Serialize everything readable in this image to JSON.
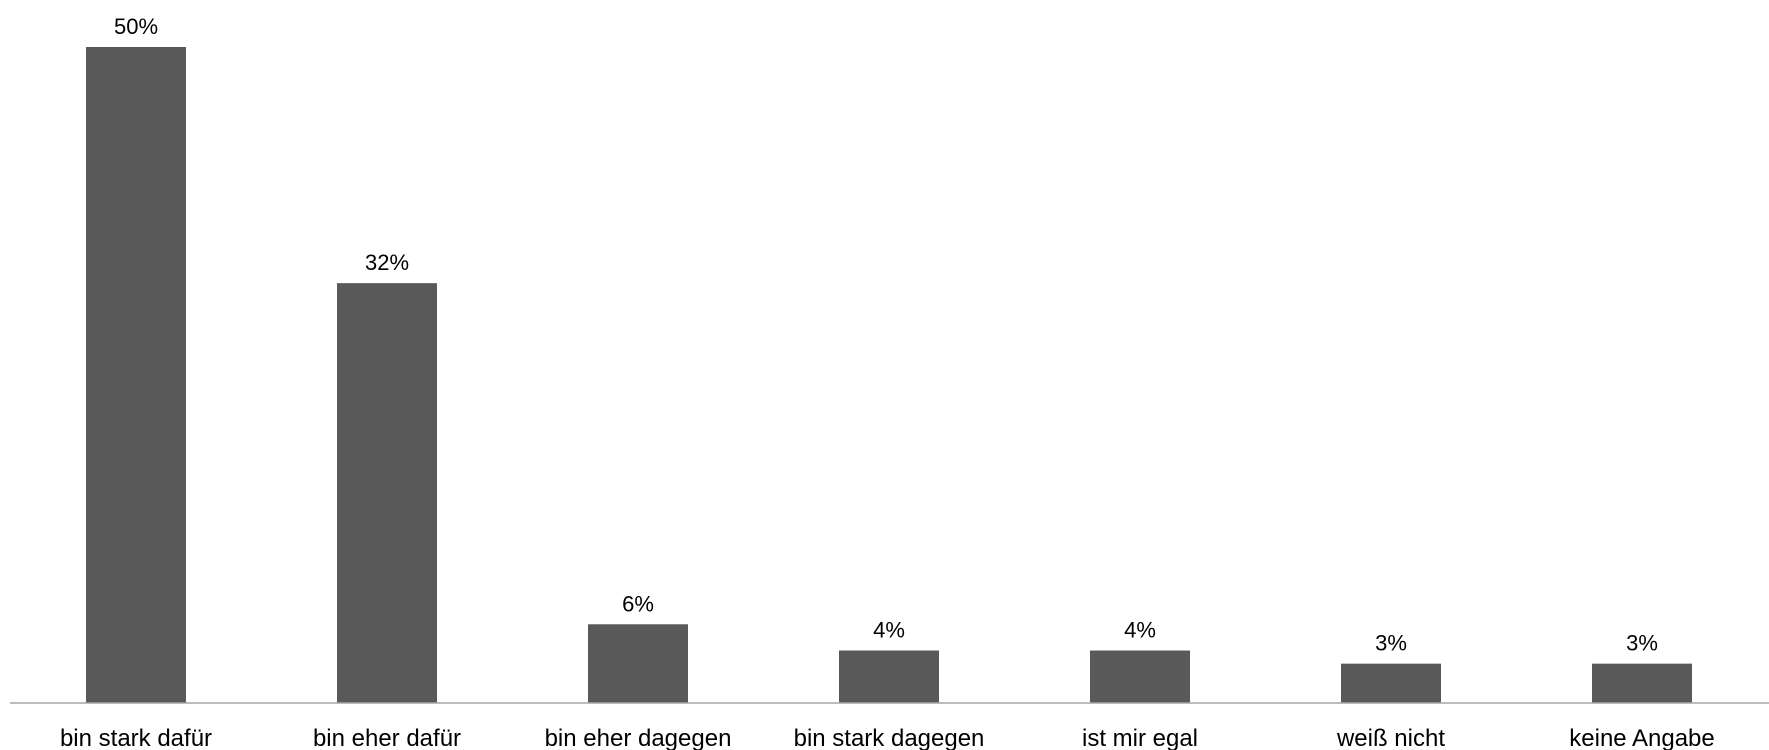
{
  "chart_data": {
    "type": "bar",
    "categories": [
      "bin stark dafür",
      "bin eher dafür",
      "bin eher dagegen",
      "bin stark dagegen",
      "ist mir egal",
      "weiß nicht",
      "keine Angabe"
    ],
    "values": [
      50,
      32,
      6,
      4,
      4,
      3,
      3
    ],
    "data_labels": [
      "50%",
      "32%",
      "6%",
      "4%",
      "4%",
      "3%",
      "3%"
    ],
    "title": "",
    "xlabel": "",
    "ylabel": "",
    "ylim": [
      0,
      50
    ],
    "grid": false,
    "legend": "none",
    "colors": {
      "bar": "#595959",
      "axis": "#a6a6a6"
    }
  }
}
